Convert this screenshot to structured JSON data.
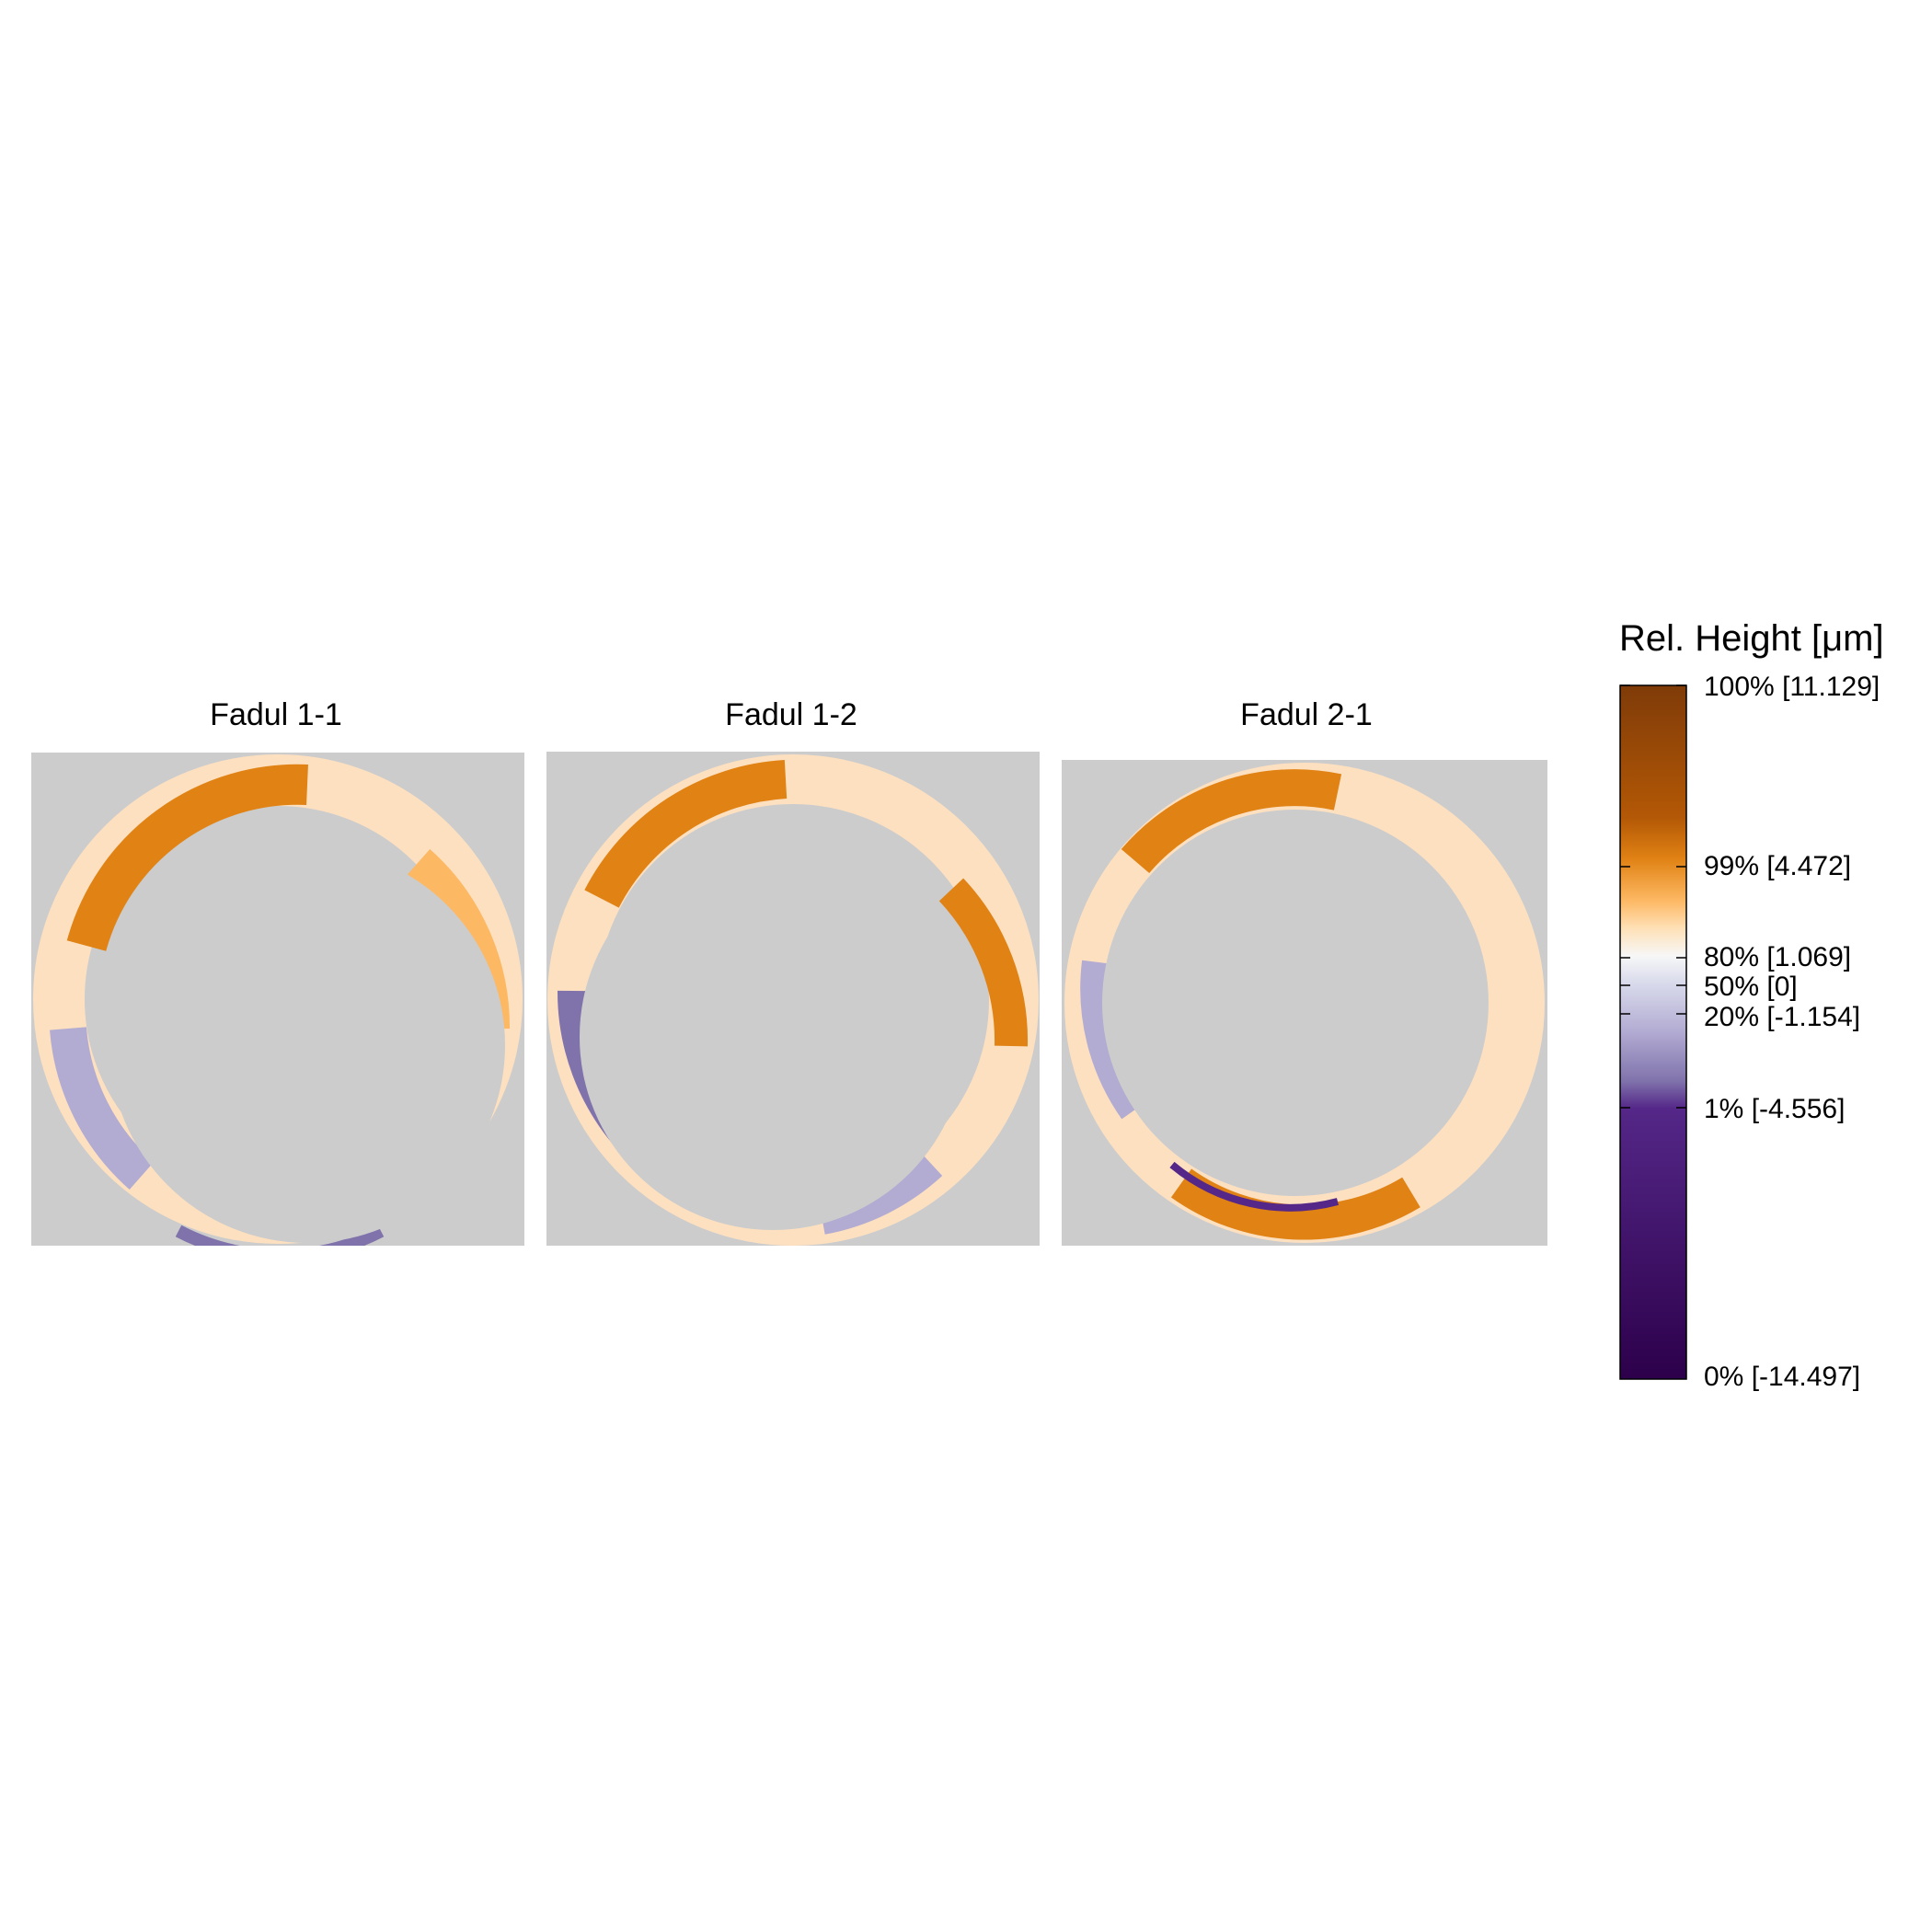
{
  "chart_data": {
    "type": "heatmap",
    "panels": [
      {
        "title": "Fadul 1-1"
      },
      {
        "title": "Fadul 1-2"
      },
      {
        "title": "Fadul 2-1"
      }
    ],
    "legend": {
      "title": "Rel. Height [μm]",
      "ticks": [
        {
          "label": "100% [11.129]",
          "percentile": 100,
          "value": 11.129
        },
        {
          "label": "99% [4.472]",
          "percentile": 99,
          "value": 4.472
        },
        {
          "label": "80% [1.069]",
          "percentile": 80,
          "value": 1.069
        },
        {
          "label": "50% [0]",
          "percentile": 50,
          "value": 0
        },
        {
          "label": "20% [-1.154]",
          "percentile": 20,
          "value": -1.154
        },
        {
          "label": "1% [-4.556]",
          "percentile": 1,
          "value": -4.556
        },
        {
          "label": "0% [-14.497]",
          "percentile": 0,
          "value": -14.497
        }
      ],
      "colors": {
        "high": "#7f3b08",
        "orange": "#e08214",
        "light_orange": "#fdb863",
        "mid": "#f7f7f7",
        "light_purple": "#b2abd2",
        "purple": "#542788",
        "low": "#2d004b",
        "missing": "#cccccc"
      }
    }
  }
}
